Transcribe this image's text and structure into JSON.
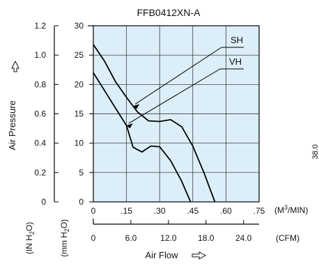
{
  "chart_data": {
    "type": "line",
    "title": "FFB0412XN-A",
    "x_axis_primary": {
      "unit_label": "(M3/MIN)",
      "range": [
        0,
        0.75
      ],
      "ticks": [
        {
          "v": 0,
          "label": "0"
        },
        {
          "v": 0.15,
          "label": ".15"
        },
        {
          "v": 0.3,
          "label": ".30"
        },
        {
          "v": 0.45,
          "label": ".45"
        },
        {
          "v": 0.6,
          "label": ".60"
        },
        {
          "v": 0.75,
          "label": ".75"
        }
      ]
    },
    "x_axis_secondary": {
      "unit_label": "(CFM)",
      "ticks": [
        {
          "v": 0,
          "label": "0"
        },
        {
          "v": 6,
          "label": "6.0"
        },
        {
          "v": 12,
          "label": "12.0"
        },
        {
          "v": 18,
          "label": "18.0"
        },
        {
          "v": 24,
          "label": "24.0"
        }
      ]
    },
    "xlabel": "Air Flow",
    "ylabel": "Air Pressure",
    "y_axis_primary": {
      "unit_label": "(mm H2O)",
      "range": [
        0,
        30
      ],
      "ticks": [
        {
          "v": 0,
          "label": "0"
        },
        {
          "v": 5,
          "label": "5"
        },
        {
          "v": 10,
          "label": "10"
        },
        {
          "v": 15,
          "label": "15"
        },
        {
          "v": 20,
          "label": "20"
        },
        {
          "v": 25,
          "label": "25"
        },
        {
          "v": 30,
          "label": "30"
        }
      ]
    },
    "y_axis_secondary": {
      "unit_label": "(IN H2O)",
      "ticks": [
        {
          "v": 0,
          "label": "0"
        },
        {
          "v": 0.2,
          "label": "0.2"
        },
        {
          "v": 0.4,
          "label": "0.4"
        },
        {
          "v": 0.6,
          "label": "0.6"
        },
        {
          "v": 0.8,
          "label": "0.8"
        },
        {
          "v": 1.0,
          "label": "1.0"
        },
        {
          "v": 1.2,
          "label": "1.2"
        }
      ]
    },
    "grid": true,
    "background_color": "#dceef8",
    "line_color": "#000000",
    "series": [
      {
        "name": "SH",
        "points": [
          [
            0,
            26.8
          ],
          [
            0.05,
            24.0
          ],
          [
            0.1,
            20.5
          ],
          [
            0.15,
            17.8
          ],
          [
            0.2,
            15.3
          ],
          [
            0.25,
            13.8
          ],
          [
            0.3,
            13.7
          ],
          [
            0.35,
            14.0
          ],
          [
            0.4,
            12.8
          ],
          [
            0.45,
            9.5
          ],
          [
            0.5,
            5.0
          ],
          [
            0.55,
            0
          ]
        ]
      },
      {
        "name": "VH",
        "points": [
          [
            0,
            22.0
          ],
          [
            0.05,
            19.0
          ],
          [
            0.1,
            16.0
          ],
          [
            0.15,
            13.0
          ],
          [
            0.18,
            9.3
          ],
          [
            0.22,
            8.5
          ],
          [
            0.26,
            9.5
          ],
          [
            0.3,
            9.4
          ],
          [
            0.35,
            7.0
          ],
          [
            0.4,
            3.5
          ],
          [
            0.44,
            0
          ]
        ]
      }
    ],
    "annotations": [
      {
        "label": "SH",
        "series": "SH",
        "at": 0.18
      },
      {
        "label": "VH",
        "series": "VH",
        "at": 0.15
      }
    ],
    "side_text": "38.0"
  }
}
